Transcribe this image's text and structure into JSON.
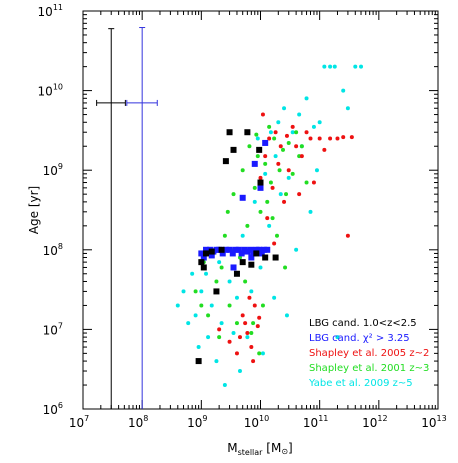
{
  "chart_data": {
    "type": "scatter",
    "x_scale": "log",
    "y_scale": "log",
    "xlim": [
      10000000,
      10000000000000
    ],
    "ylim": [
      1000000,
      100000000000
    ],
    "xlabel": {
      "main": "M",
      "sub": "stellar",
      "unit_open": " [M",
      "unit_sym": "⊙",
      "unit_close": "]"
    },
    "ylabel": {
      "text": "Age [yr]"
    },
    "x_ticks": [
      {
        "value": 10000000,
        "base": "10",
        "exp": "7"
      },
      {
        "value": 100000000,
        "base": "10",
        "exp": "8"
      },
      {
        "value": 1000000000,
        "base": "10",
        "exp": "9"
      },
      {
        "value": 10000000000,
        "base": "10",
        "exp": "10"
      },
      {
        "value": 100000000000,
        "base": "10",
        "exp": "11"
      },
      {
        "value": 1000000000000,
        "base": "10",
        "exp": "12"
      },
      {
        "value": 10000000000000,
        "base": "10",
        "exp": "13"
      }
    ],
    "y_ticks": [
      {
        "value": 1000000,
        "base": "10",
        "exp": "6"
      },
      {
        "value": 10000000,
        "base": "10",
        "exp": "7"
      },
      {
        "value": 100000000,
        "base": "10",
        "exp": "8"
      },
      {
        "value": 1000000000,
        "base": "10",
        "exp": "9"
      },
      {
        "value": 10000000000,
        "base": "10",
        "exp": "10"
      },
      {
        "value": 100000000000,
        "base": "10",
        "exp": "11"
      }
    ],
    "error_bars": [
      {
        "x": 30000000,
        "y": 7000000000,
        "y_low": 1000000,
        "y_high": 60000000000,
        "x_low": 17000000,
        "x_high": 52000000,
        "color": "#000000"
      },
      {
        "x": 100000000,
        "y": 7000000000,
        "y_low": 1000000,
        "y_high": 62000000000,
        "x_low": 55000000,
        "x_high": 180000000,
        "color": "#3333dd"
      }
    ],
    "legend_position": "lower-right",
    "series": [
      {
        "name": "Yabe et al. 2009 z~5",
        "color": "#00e5e5",
        "marker": "circle",
        "points": [
          [
            400000000,
            20000000
          ],
          [
            500000000,
            30000000
          ],
          [
            600000000,
            12000000
          ],
          [
            700000000,
            50000000
          ],
          [
            800000000,
            15000000
          ],
          [
            900000000,
            6000000
          ],
          [
            1000000000,
            30000000
          ],
          [
            1200000000,
            50000000
          ],
          [
            1300000000,
            8000000
          ],
          [
            1500000000,
            20000000
          ],
          [
            1800000000,
            4000000
          ],
          [
            2000000000,
            70000000
          ],
          [
            2200000000,
            12000000
          ],
          [
            2500000000,
            2000000
          ],
          [
            3000000000,
            40000000
          ],
          [
            3500000000,
            9000000
          ],
          [
            4000000000,
            25000000
          ],
          [
            4500000000,
            3000000
          ],
          [
            5000000000,
            150000000
          ],
          [
            6000000000,
            8000000
          ],
          [
            7000000000,
            30000000
          ],
          [
            8000000000,
            400000000
          ],
          [
            9000000000,
            2500000000
          ],
          [
            10000000000,
            60000000
          ],
          [
            11000000000,
            5000000
          ],
          [
            12000000000,
            900000000
          ],
          [
            14000000000,
            200000000
          ],
          [
            15000000000,
            3000000000
          ],
          [
            17000000000,
            25000000
          ],
          [
            18000000000,
            1500000000
          ],
          [
            20000000000,
            4000000000
          ],
          [
            22000000000,
            500000000
          ],
          [
            25000000000,
            6000000000
          ],
          [
            28000000000,
            15000000
          ],
          [
            30000000000,
            800000000
          ],
          [
            35000000000,
            3000000000
          ],
          [
            40000000000,
            100000000
          ],
          [
            45000000000,
            5000000000
          ],
          [
            50000000000,
            2000000000
          ],
          [
            60000000000,
            8000000000
          ],
          [
            70000000000,
            300000000
          ],
          [
            80000000000,
            3500000000
          ],
          [
            90000000000,
            1000000000
          ],
          [
            100000000000,
            4000000000
          ],
          [
            120000000000,
            20000000000
          ],
          [
            150000000000,
            20000000000
          ],
          [
            180000000000,
            20000000000
          ],
          [
            400000000000,
            20000000000
          ],
          [
            500000000000,
            20000000000
          ],
          [
            300000000000,
            6000000000
          ],
          [
            250000000000,
            10000000000
          ],
          [
            200000000000,
            8000000
          ]
        ]
      },
      {
        "name": "Shapley et al. 2001 z~3",
        "color": "#22dd22",
        "marker": "circle",
        "points": [
          [
            800000000,
            30000000
          ],
          [
            1000000000,
            20000000
          ],
          [
            1100000000,
            70000000
          ],
          [
            1300000000,
            15000000
          ],
          [
            1500000000,
            100000000
          ],
          [
            1800000000,
            40000000
          ],
          [
            2000000000,
            8000000
          ],
          [
            2200000000,
            60000000
          ],
          [
            2500000000,
            150000000
          ],
          [
            2800000000,
            300000000
          ],
          [
            3000000000,
            20000000
          ],
          [
            3200000000,
            100000000
          ],
          [
            3500000000,
            500000000
          ],
          [
            4000000000,
            12000000
          ],
          [
            4500000000,
            80000000
          ],
          [
            5000000000,
            1000000000
          ],
          [
            5500000000,
            40000000
          ],
          [
            6000000000,
            200000000
          ],
          [
            6500000000,
            2000000000
          ],
          [
            7000000000,
            9000000
          ],
          [
            8000000000,
            600000000
          ],
          [
            9000000000,
            1500000000
          ],
          [
            10000000000,
            300000000
          ],
          [
            11000000000,
            20000000
          ],
          [
            12000000000,
            1200000000
          ],
          [
            13000000000,
            400000000
          ],
          [
            15000000000,
            700000000
          ],
          [
            17000000000,
            2500000000
          ],
          [
            19000000000,
            150000000
          ],
          [
            21000000000,
            1000000000
          ],
          [
            24000000000,
            1800000000
          ],
          [
            27000000000,
            500000000
          ],
          [
            30000000000,
            2200000000
          ],
          [
            35000000000,
            900000000
          ],
          [
            40000000000,
            3000000000
          ],
          [
            45000000000,
            1500000000
          ],
          [
            50000000000,
            2000000000
          ],
          [
            60000000000,
            700000000
          ],
          [
            8500000000,
            2800000000
          ],
          [
            14000000000,
            3500000000
          ],
          [
            16000000000,
            250000000
          ],
          [
            26000000000,
            60000000
          ],
          [
            7500000000,
            12000000
          ],
          [
            9500000000,
            5000000
          ]
        ]
      },
      {
        "name": "Shapley et al. 2005 z~2",
        "color": "#ee1111",
        "marker": "circle",
        "points": [
          [
            2000000000,
            10000000
          ],
          [
            3000000000,
            7000000
          ],
          [
            4000000000,
            5000000
          ],
          [
            5000000000,
            15000000
          ],
          [
            6000000000,
            9000000
          ],
          [
            7000000000,
            6000000
          ],
          [
            8000000000,
            20000000
          ],
          [
            9000000000,
            11000000
          ],
          [
            10000000000,
            800000000
          ],
          [
            12000000000,
            1500000000
          ],
          [
            14000000000,
            2500000000
          ],
          [
            16000000000,
            600000000
          ],
          [
            18000000000,
            3000000000
          ],
          [
            20000000000,
            1200000000
          ],
          [
            22000000000,
            2000000000
          ],
          [
            25000000000,
            400000000
          ],
          [
            28000000000,
            2700000000
          ],
          [
            30000000000,
            1000000000
          ],
          [
            35000000000,
            3500000000
          ],
          [
            40000000000,
            2000000000
          ],
          [
            45000000000,
            500000000
          ],
          [
            50000000000,
            1500000000
          ],
          [
            60000000000,
            3000000000
          ],
          [
            70000000000,
            2500000000
          ],
          [
            80000000000,
            700000000
          ],
          [
            100000000000,
            2500000000
          ],
          [
            120000000000,
            1800000000
          ],
          [
            150000000000,
            2500000000
          ],
          [
            200000000000,
            2500000000
          ],
          [
            250000000000,
            2600000000
          ],
          [
            300000000000,
            150000000
          ],
          [
            350000000000,
            2600000000
          ],
          [
            13000000000,
            250000000
          ],
          [
            11000000000,
            5000000000
          ],
          [
            17000000000,
            120000000
          ],
          [
            9500000000,
            14000000
          ],
          [
            7500000000,
            4000000
          ],
          [
            6500000000,
            25000000
          ],
          [
            5500000000,
            12000000
          ],
          [
            4500000000,
            8000000
          ]
        ]
      },
      {
        "name": "LBG cand. χ² > 3.25",
        "color": "#1a1aff",
        "marker": "square",
        "points": [
          [
            1000000000,
            90000000
          ],
          [
            1200000000,
            100000000
          ],
          [
            1400000000,
            100000000
          ],
          [
            1600000000,
            95000000
          ],
          [
            1800000000,
            100000000
          ],
          [
            2000000000,
            100000000
          ],
          [
            2300000000,
            90000000
          ],
          [
            2600000000,
            100000000
          ],
          [
            3000000000,
            100000000
          ],
          [
            3400000000,
            90000000
          ],
          [
            3800000000,
            100000000
          ],
          [
            4300000000,
            100000000
          ],
          [
            4800000000,
            90000000
          ],
          [
            5400000000,
            100000000
          ],
          [
            6000000000,
            95000000
          ],
          [
            6800000000,
            100000000
          ],
          [
            7600000000,
            90000000
          ],
          [
            8500000000,
            100000000
          ],
          [
            9500000000,
            100000000
          ],
          [
            10500000000,
            90000000
          ],
          [
            11500000000,
            100000000
          ],
          [
            13000000000,
            100000000
          ],
          [
            1100000000,
            80000000
          ],
          [
            1500000000,
            85000000
          ],
          [
            8000000000,
            1200000000
          ],
          [
            12000000000,
            2200000000
          ],
          [
            10000000000,
            600000000
          ],
          [
            5000000000,
            450000000
          ],
          [
            3500000000,
            60000000
          ],
          [
            7000000000,
            80000000
          ]
        ]
      },
      {
        "name": "LBG cand. 1.0<z<2.5",
        "color": "#000000",
        "marker": "square",
        "points": [
          [
            1000000000,
            70000000
          ],
          [
            1200000000,
            90000000
          ],
          [
            1500000000,
            95000000
          ],
          [
            1100000000,
            60000000
          ],
          [
            1800000000,
            30000000
          ],
          [
            2200000000,
            100000000
          ],
          [
            2600000000,
            1300000000
          ],
          [
            3000000000,
            3000000000
          ],
          [
            3500000000,
            1800000000
          ],
          [
            4000000000,
            50000000
          ],
          [
            6000000000,
            3000000000
          ],
          [
            7000000000,
            65000000
          ],
          [
            8500000000,
            90000000
          ],
          [
            9500000000,
            1800000000
          ],
          [
            12000000000,
            80000000
          ],
          [
            18000000000,
            80000000
          ],
          [
            900000000,
            4000000
          ],
          [
            5000000000,
            70000000
          ],
          [
            10000000000,
            700000000
          ]
        ]
      }
    ]
  }
}
